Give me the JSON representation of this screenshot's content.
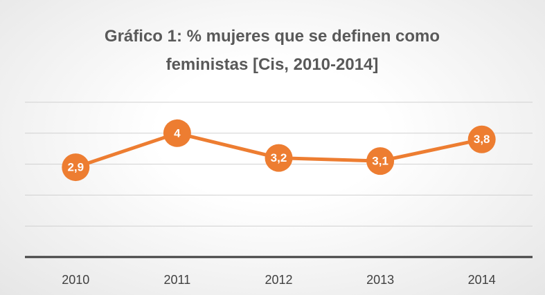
{
  "chart_data": {
    "type": "line",
    "title": "Gráfico 1: % mujeres que se definen como feministas [Cis, 2010-2014]",
    "categories": [
      "2010",
      "2011",
      "2012",
      "2013",
      "2014"
    ],
    "series": [
      {
        "name": "% mujeres",
        "color": "#ed7d31",
        "values": [
          2.9,
          4,
          3.2,
          3.1,
          3.8
        ],
        "value_labels": [
          "2,9",
          "4",
          "3,2",
          "3,1",
          "3,8"
        ]
      }
    ],
    "ylim": [
      0,
      5
    ],
    "yticks": [
      0,
      1,
      2,
      3,
      4,
      5
    ],
    "ytick_labels": false,
    "grid": true,
    "legend": false
  }
}
